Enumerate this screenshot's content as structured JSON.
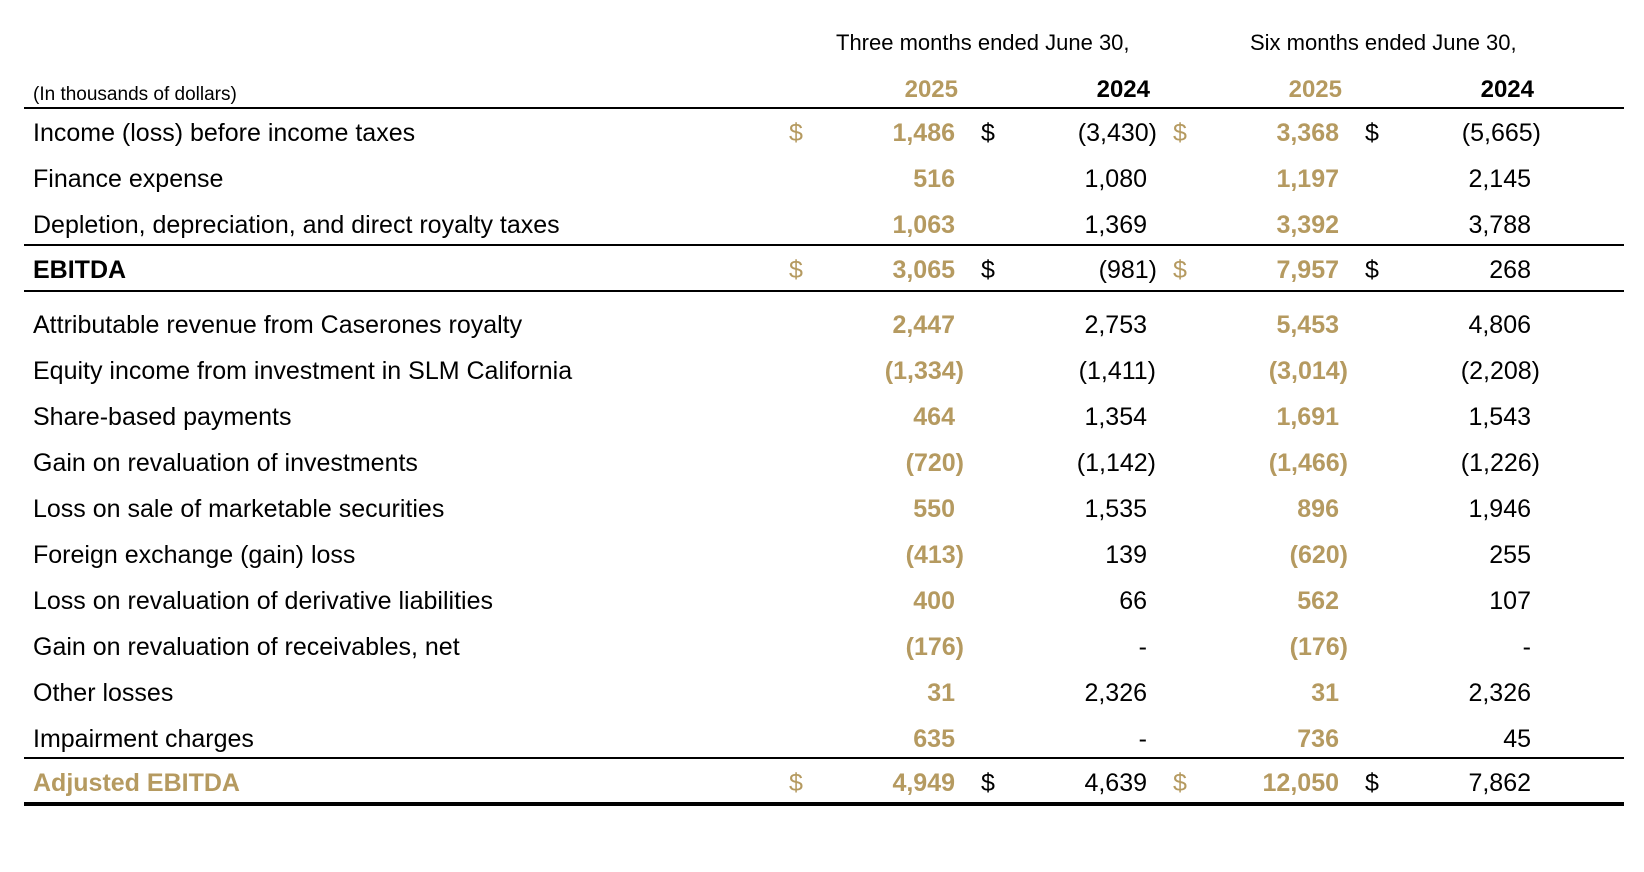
{
  "header": {
    "three_months": "Three months ended June 30,",
    "six_months": "Six months ended June 30,",
    "units": "(In thousands of dollars)",
    "years": [
      "2025",
      "2024",
      "2025",
      "2024"
    ]
  },
  "currency_symbol": "$",
  "colors": {
    "accent": "#b59a60",
    "text": "#000000"
  },
  "rows": [
    {
      "label": "Income (loss) before income taxes",
      "values": [
        "1,486",
        "(3,430)",
        "3,368",
        "(5,665)"
      ]
    },
    {
      "label": "Finance expense",
      "values": [
        "516",
        "1,080",
        "1,197",
        "2,145"
      ]
    },
    {
      "label": "Depletion, depreciation, and direct royalty taxes",
      "values": [
        "1,063",
        "1,369",
        "3,392",
        "3,788"
      ]
    },
    {
      "label": "EBITDA",
      "values": [
        "3,065",
        "(981)",
        "7,957",
        "268"
      ]
    },
    {
      "label": "Attributable revenue from Caserones royalty",
      "values": [
        "2,447",
        "2,753",
        "5,453",
        "4,806"
      ]
    },
    {
      "label": "Equity income from investment in SLM California",
      "values": [
        "(1,334)",
        "(1,411)",
        "(3,014)",
        "(2,208)"
      ]
    },
    {
      "label": "Share-based payments",
      "values": [
        "464",
        "1,354",
        "1,691",
        "1,543"
      ]
    },
    {
      "label": "Gain on revaluation of investments",
      "values": [
        "(720)",
        "(1,142)",
        "(1,466)",
        "(1,226)"
      ]
    },
    {
      "label": "Loss on sale of marketable securities",
      "values": [
        "550",
        "1,535",
        "896",
        "1,946"
      ]
    },
    {
      "label": "Foreign exchange (gain) loss",
      "values": [
        "(413)",
        "139",
        "(620)",
        "255"
      ]
    },
    {
      "label": "Loss on revaluation of derivative liabilities",
      "values": [
        "400",
        "66",
        "562",
        "107"
      ]
    },
    {
      "label": "Gain on revaluation of receivables, net",
      "values": [
        "(176)",
        "-",
        "(176)",
        "-"
      ]
    },
    {
      "label": "Other losses",
      "values": [
        "31",
        "2,326",
        "31",
        "2,326"
      ]
    },
    {
      "label": "Impairment charges",
      "values": [
        "635",
        "-",
        "736",
        "45"
      ]
    },
    {
      "label": "Adjusted EBITDA",
      "values": [
        "4,949",
        "4,639",
        "12,050",
        "7,862"
      ]
    }
  ]
}
